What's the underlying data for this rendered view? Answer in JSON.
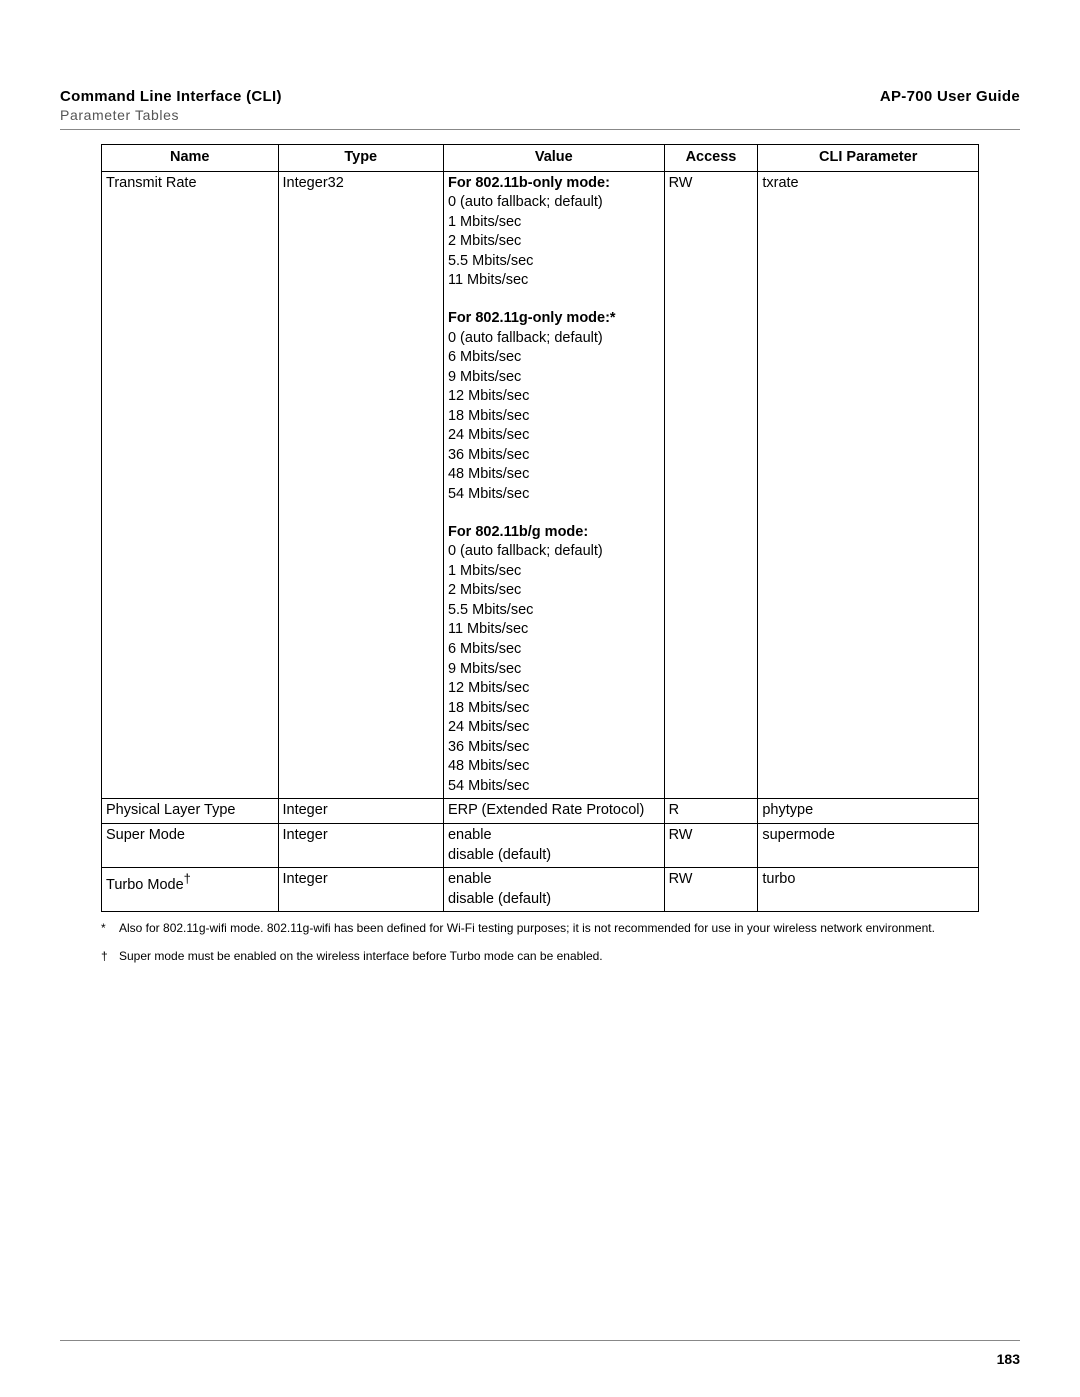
{
  "header": {
    "title_left": "Command Line Interface (CLI)",
    "title_right": "AP-700 User Guide",
    "subtitle": "Parameter Tables"
  },
  "table": {
    "columns": [
      "Name",
      "Type",
      "Value",
      "Access",
      "CLI Parameter"
    ],
    "rows": [
      {
        "name": "Transmit Rate",
        "type": "Integer32",
        "access": "RW",
        "cli": "txrate",
        "value_blocks": [
          {
            "heading": "For 802.11b-only mode:",
            "lines": [
              "0 (auto fallback; default)",
              "1 Mbits/sec",
              "2 Mbits/sec",
              "5.5 Mbits/sec",
              "11 Mbits/sec"
            ]
          },
          {
            "heading": "For 802.11g-only mode:*",
            "lines": [
              "0 (auto fallback; default)",
              "6 Mbits/sec",
              "9 Mbits/sec",
              "12 Mbits/sec",
              "18 Mbits/sec",
              "24 Mbits/sec",
              "36 Mbits/sec",
              "48 Mbits/sec",
              "54 Mbits/sec"
            ]
          },
          {
            "heading": "For 802.11b/g mode:",
            "lines": [
              "0 (auto fallback; default)",
              "1 Mbits/sec",
              "2 Mbits/sec",
              "5.5 Mbits/sec",
              "11 Mbits/sec",
              "6 Mbits/sec",
              "9 Mbits/sec",
              "12 Mbits/sec",
              "18 Mbits/sec",
              "24 Mbits/sec",
              "36 Mbits/sec",
              "48 Mbits/sec",
              "54 Mbits/sec"
            ]
          }
        ]
      },
      {
        "name": "Physical Layer Type",
        "type": "Integer",
        "access": "R",
        "cli": "phytype",
        "value_lines": [
          "ERP (Extended Rate Protocol)"
        ]
      },
      {
        "name": "Super Mode",
        "type": "Integer",
        "access": "RW",
        "cli": "supermode",
        "value_lines": [
          "enable",
          "disable (default)"
        ]
      },
      {
        "name_pre": "Turbo Mode",
        "name_sup": "†",
        "type": "Integer",
        "access": "RW",
        "cli": "turbo",
        "value_lines": [
          "enable",
          "disable (default)"
        ]
      }
    ]
  },
  "footnotes": [
    {
      "mark": "*",
      "text": "Also for 802.11g-wifi mode. 802.11g-wifi has been defined for Wi-Fi testing purposes; it is not recommended for use in your wireless network environment."
    },
    {
      "mark": "†",
      "text": "Super mode must be enabled on the wireless interface before Turbo mode can be enabled."
    }
  ],
  "page_number": "183"
}
